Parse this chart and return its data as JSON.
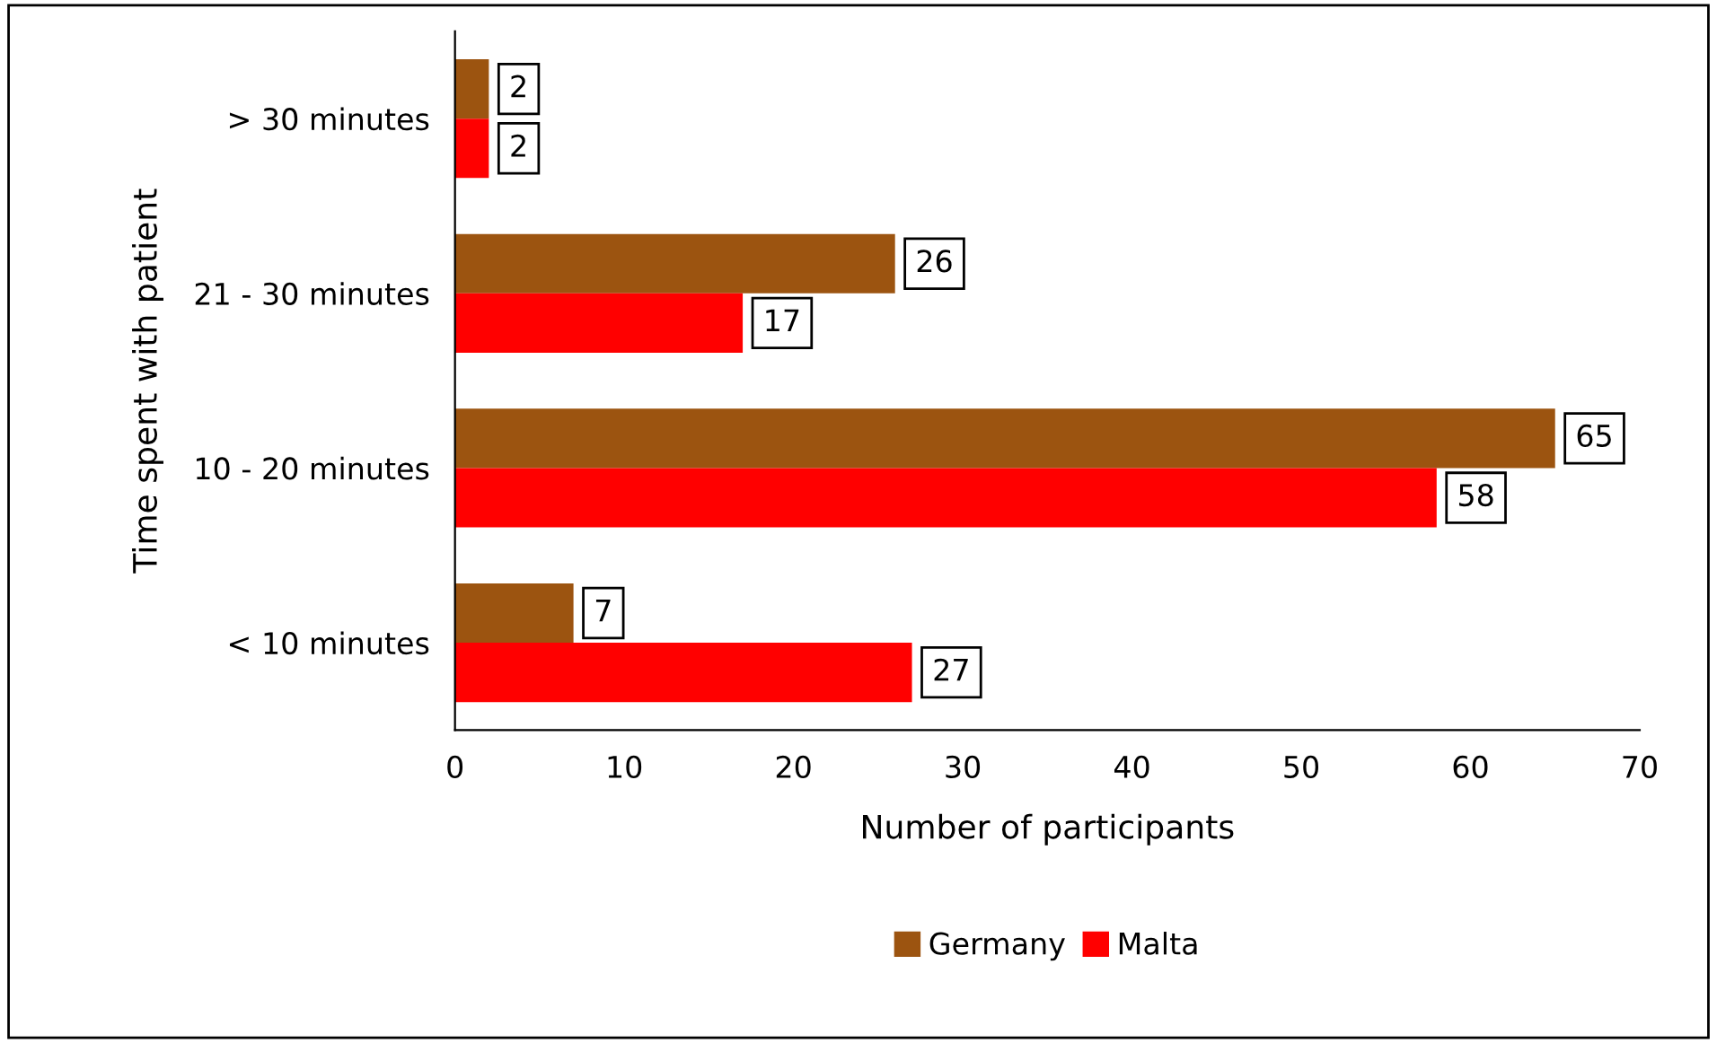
{
  "chart_data": {
    "type": "bar",
    "orientation": "horizontal",
    "xlabel": "Number of participants",
    "ylabel": "Time spent with patient",
    "categories": [
      "> 30 minutes",
      "21 - 30 minutes",
      "10 - 20 minutes",
      "< 10 minutes"
    ],
    "series": [
      {
        "name": "Germany",
        "color": "#9c5410",
        "values": [
          2,
          26,
          65,
          7
        ]
      },
      {
        "name": "Malta",
        "color": "#ff0000",
        "values": [
          2,
          17,
          58,
          27
        ]
      }
    ],
    "xlim": [
      0,
      70
    ],
    "xticks": [
      0,
      10,
      20,
      30,
      40,
      50,
      60,
      70
    ],
    "data_labels": true,
    "grid": false,
    "legend": "bottom"
  }
}
